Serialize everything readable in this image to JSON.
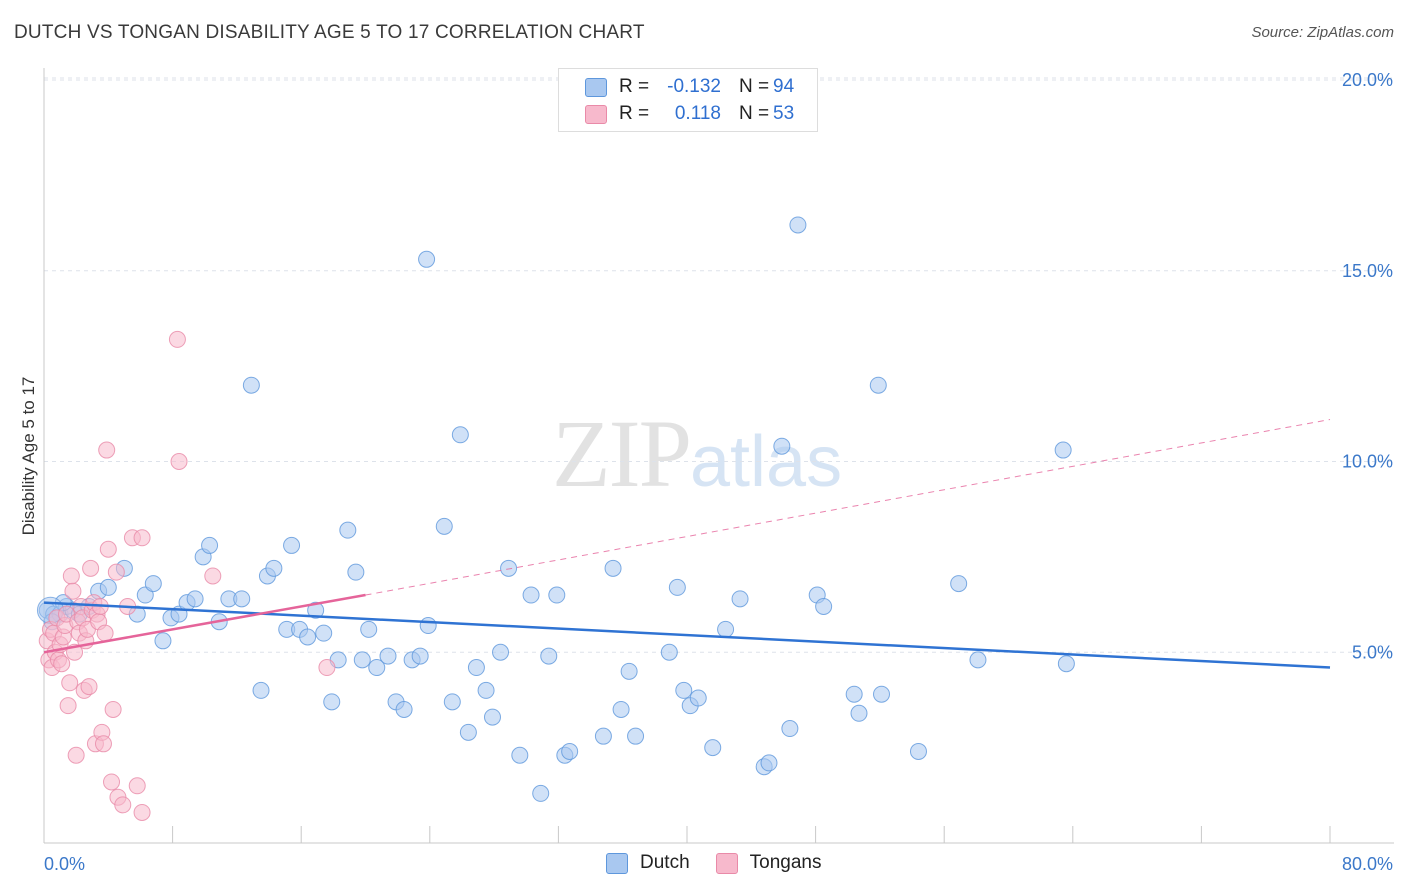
{
  "header": {
    "title": "DUTCH VS TONGAN DISABILITY AGE 5 TO 17 CORRELATION CHART",
    "source": "Source: ZipAtlas.com"
  },
  "watermark": {
    "zip": "ZIP",
    "atlas": "atlas"
  },
  "legend": {
    "rows": [
      {
        "r_label": "R =",
        "r_value": "-0.132",
        "n_label": "N =",
        "n_value": "94",
        "color": "#a9c8f0"
      },
      {
        "r_label": "R =",
        "r_value": "0.118",
        "n_label": "N =",
        "n_value": "53",
        "color": "#f7b9cc"
      }
    ]
  },
  "bottom_legend": {
    "items": [
      "Dutch",
      "Tongans"
    ]
  },
  "colors": {
    "dutch_fill": "#a9c8f0",
    "dutch_stroke": "#5e97dc",
    "dutch_line": "#2f73d3",
    "tongan_fill": "#f7b9cc",
    "tongan_stroke": "#e98aa8",
    "tongan_line": "#e5649a",
    "grid": "#dde2ea",
    "tick_text": "#3b78c9"
  },
  "chart_data": {
    "type": "scatter",
    "title": "DUTCH VS TONGAN DISABILITY AGE 5 TO 17 CORRELATION CHART",
    "xlabel": "",
    "ylabel": "Disability Age 5 to 17",
    "xlim": [
      0,
      80
    ],
    "ylim": [
      0,
      20
    ],
    "x_tick_labels": [
      "0.0%",
      "80.0%"
    ],
    "y_ticks": [
      5,
      10,
      15,
      20
    ],
    "y_tick_labels": [
      "5.0%",
      "10.0%",
      "15.0%",
      "20.0%"
    ],
    "grid": true,
    "legend_position": "top-center",
    "series": [
      {
        "name": "Dutch",
        "r": -0.132,
        "n": 94,
        "trend": {
          "x": [
            0,
            80
          ],
          "y": [
            6.3,
            4.6
          ],
          "style": "solid"
        },
        "points": [
          [
            0.2,
            6.1
          ],
          [
            0.6,
            6.0
          ],
          [
            1.0,
            6.0
          ],
          [
            1.4,
            6.2
          ],
          [
            1.8,
            6.1
          ],
          [
            2.2,
            6.0
          ],
          [
            2.8,
            6.2
          ],
          [
            3.4,
            6.6
          ],
          [
            4.0,
            6.7
          ],
          [
            5.0,
            7.2
          ],
          [
            5.8,
            6.0
          ],
          [
            6.3,
            6.5
          ],
          [
            6.8,
            6.8
          ],
          [
            7.4,
            5.3
          ],
          [
            7.9,
            5.9
          ],
          [
            8.4,
            6.0
          ],
          [
            8.9,
            6.3
          ],
          [
            9.4,
            6.4
          ],
          [
            9.9,
            7.5
          ],
          [
            10.3,
            7.8
          ],
          [
            10.9,
            5.8
          ],
          [
            11.5,
            6.4
          ],
          [
            12.3,
            6.4
          ],
          [
            12.9,
            12.0
          ],
          [
            13.5,
            4.0
          ],
          [
            13.9,
            7.0
          ],
          [
            14.3,
            7.2
          ],
          [
            15.1,
            5.6
          ],
          [
            15.4,
            7.8
          ],
          [
            15.9,
            5.6
          ],
          [
            16.4,
            5.4
          ],
          [
            16.9,
            6.1
          ],
          [
            17.4,
            5.5
          ],
          [
            17.9,
            3.7
          ],
          [
            18.3,
            4.8
          ],
          [
            18.9,
            8.2
          ],
          [
            19.4,
            7.1
          ],
          [
            19.8,
            4.8
          ],
          [
            20.2,
            5.6
          ],
          [
            20.7,
            4.6
          ],
          [
            21.4,
            4.9
          ],
          [
            21.9,
            3.7
          ],
          [
            22.4,
            3.5
          ],
          [
            22.9,
            4.8
          ],
          [
            23.4,
            4.9
          ],
          [
            23.9,
            5.7
          ],
          [
            23.8,
            15.3
          ],
          [
            24.9,
            8.3
          ],
          [
            25.4,
            3.7
          ],
          [
            25.9,
            10.7
          ],
          [
            26.4,
            2.9
          ],
          [
            26.9,
            4.6
          ],
          [
            27.5,
            4.0
          ],
          [
            27.9,
            3.3
          ],
          [
            28.4,
            5.0
          ],
          [
            28.9,
            7.2
          ],
          [
            29.6,
            2.3
          ],
          [
            30.3,
            6.5
          ],
          [
            30.9,
            1.3
          ],
          [
            31.4,
            4.9
          ],
          [
            31.9,
            6.5
          ],
          [
            32.4,
            2.3
          ],
          [
            32.7,
            2.4
          ],
          [
            34.8,
            2.8
          ],
          [
            35.4,
            7.2
          ],
          [
            35.9,
            3.5
          ],
          [
            36.4,
            4.5
          ],
          [
            36.8,
            2.8
          ],
          [
            38.9,
            5.0
          ],
          [
            39.4,
            6.7
          ],
          [
            39.8,
            4.0
          ],
          [
            40.2,
            3.6
          ],
          [
            40.7,
            3.8
          ],
          [
            41.6,
            2.5
          ],
          [
            42.4,
            5.6
          ],
          [
            43.3,
            6.4
          ],
          [
            44.8,
            2.0
          ],
          [
            45.1,
            2.1
          ],
          [
            45.9,
            10.4
          ],
          [
            46.4,
            3.0
          ],
          [
            46.9,
            16.2
          ],
          [
            48.1,
            6.5
          ],
          [
            48.5,
            6.2
          ],
          [
            50.4,
            3.9
          ],
          [
            50.7,
            3.4
          ],
          [
            51.9,
            12.0
          ],
          [
            52.1,
            3.9
          ],
          [
            54.4,
            2.4
          ],
          [
            56.9,
            6.8
          ],
          [
            58.1,
            4.8
          ],
          [
            63.4,
            10.3
          ],
          [
            63.6,
            4.7
          ],
          [
            0.5,
            5.8
          ],
          [
            1.2,
            6.3
          ]
        ]
      },
      {
        "name": "Tongans",
        "r": 0.118,
        "n": 53,
        "trend": {
          "x": [
            0,
            20
          ],
          "y": [
            5.0,
            6.5
          ],
          "dashed_extension_to": [
            80,
            11.1
          ]
        },
        "points": [
          [
            0.2,
            5.3
          ],
          [
            0.3,
            4.8
          ],
          [
            0.4,
            5.6
          ],
          [
            0.5,
            4.6
          ],
          [
            0.6,
            5.5
          ],
          [
            0.7,
            5.0
          ],
          [
            0.8,
            5.9
          ],
          [
            0.9,
            4.8
          ],
          [
            1.0,
            5.2
          ],
          [
            1.1,
            4.7
          ],
          [
            1.2,
            5.4
          ],
          [
            1.3,
            5.7
          ],
          [
            1.4,
            6.0
          ],
          [
            1.5,
            3.6
          ],
          [
            1.6,
            4.2
          ],
          [
            1.7,
            7.0
          ],
          [
            1.8,
            6.6
          ],
          [
            1.9,
            5.0
          ],
          [
            2.0,
            2.3
          ],
          [
            2.1,
            5.8
          ],
          [
            2.2,
            5.5
          ],
          [
            2.3,
            6.2
          ],
          [
            2.4,
            5.9
          ],
          [
            2.5,
            4.0
          ],
          [
            2.6,
            5.3
          ],
          [
            2.7,
            5.6
          ],
          [
            2.8,
            4.1
          ],
          [
            2.9,
            7.2
          ],
          [
            3.0,
            6.1
          ],
          [
            3.1,
            6.3
          ],
          [
            3.2,
            2.6
          ],
          [
            3.3,
            6.0
          ],
          [
            3.4,
            5.8
          ],
          [
            3.5,
            6.2
          ],
          [
            3.6,
            2.9
          ],
          [
            3.7,
            2.6
          ],
          [
            3.8,
            5.5
          ],
          [
            3.9,
            10.3
          ],
          [
            4.0,
            7.7
          ],
          [
            4.2,
            1.6
          ],
          [
            4.3,
            3.5
          ],
          [
            4.5,
            7.1
          ],
          [
            4.6,
            1.2
          ],
          [
            4.9,
            1.0
          ],
          [
            5.2,
            6.2
          ],
          [
            5.5,
            8.0
          ],
          [
            5.8,
            1.5
          ],
          [
            6.1,
            8.0
          ],
          [
            6.1,
            0.8
          ],
          [
            8.3,
            13.2
          ],
          [
            8.4,
            10.0
          ],
          [
            10.5,
            7.0
          ],
          [
            17.6,
            4.6
          ]
        ]
      }
    ]
  }
}
